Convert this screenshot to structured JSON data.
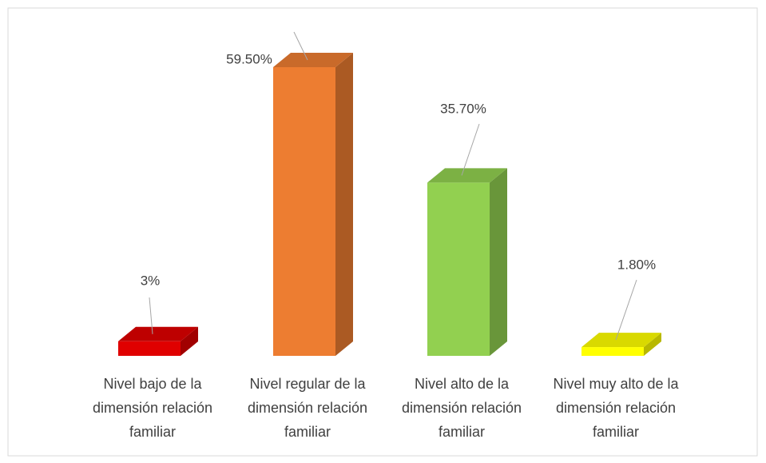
{
  "chart_data": {
    "type": "bar3d",
    "categories": [
      "Nivel bajo de la dimensión relación familiar",
      "Nivel regular de la dimensión relación familiar",
      "Nivel alto de la dimensión relación familiar",
      "Nivel muy alto de la dimensión relación familiar"
    ],
    "values": [
      3,
      59.5,
      35.7,
      1.8
    ],
    "value_labels": [
      "3%",
      "59.50%",
      "35.70%",
      "1.80%"
    ],
    "colors": [
      "#e00000",
      "#ed7d31",
      "#92d050",
      "#ffff00"
    ]
  }
}
